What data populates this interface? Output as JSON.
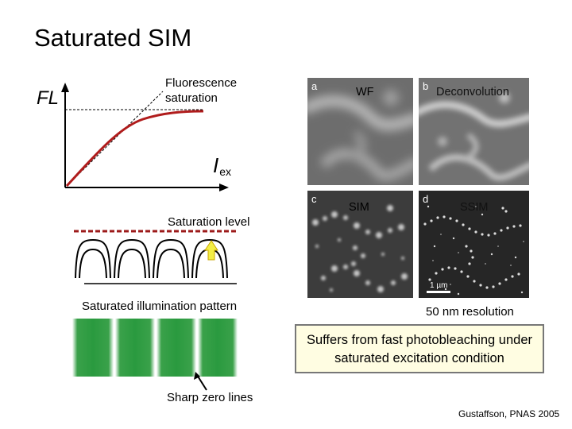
{
  "slide": {
    "title": "Saturated SIM",
    "citation": "Gustaffson, PNAS 2005"
  },
  "curve_plot": {
    "y_label": "FL",
    "x_label_main": "I",
    "x_label_sub": "ex",
    "annotation": "Fluorescence saturation"
  },
  "saturation_diagram": {
    "level_label": "Saturation level",
    "pattern_label": "Saturated illumination pattern",
    "zero_lines_label": "Sharp zero lines"
  },
  "image_panels": [
    {
      "letter": "a",
      "title": "WF"
    },
    {
      "letter": "b",
      "title": "Deconvolution"
    },
    {
      "letter": "c",
      "title": "SIM"
    },
    {
      "letter": "d",
      "title": "SSIM"
    }
  ],
  "scale_bar": "1 µm",
  "resolution_label": "50 nm resolution",
  "callout": "Suffers from fast photobleaching under saturated excitation condition",
  "colors": {
    "curve": "#b01c1c",
    "saturation_line": "#9c1a1a",
    "arrow_fill": "#f3ee45",
    "stripe_green": "#2ea043",
    "callout_fill": "#fffde2"
  }
}
